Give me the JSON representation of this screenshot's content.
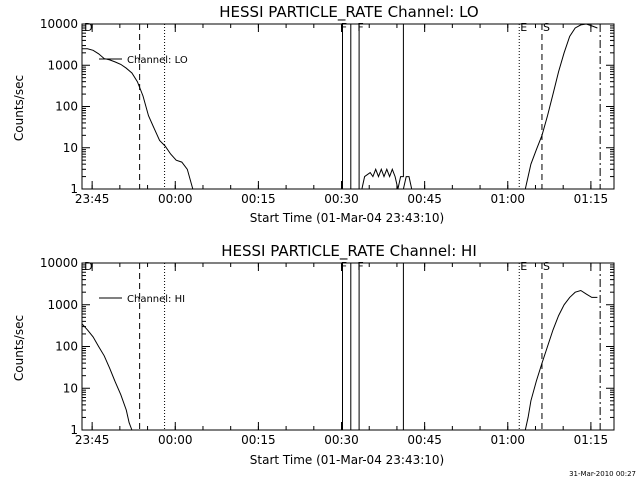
{
  "colors": {
    "foreground": "#000000",
    "background": "#ffffff"
  },
  "footer": {
    "timestamp": "31-Mar-2010 00:27"
  },
  "chart_data": [
    {
      "type": "line",
      "title": "HESSI PARTICLE_RATE Channel: LO",
      "xlabel": "Start Time (01-Mar-04 23:43:10)",
      "ylabel": "Counts/sec",
      "yscale": "log",
      "ylim": [
        1,
        10000
      ],
      "xlim_minutes": [
        0,
        96
      ],
      "x_ticks": [
        {
          "label": "23:45",
          "minutes": 1.83
        },
        {
          "label": "00:00",
          "minutes": 16.83
        },
        {
          "label": "00:15",
          "minutes": 31.83
        },
        {
          "label": "00:30",
          "minutes": 46.83
        },
        {
          "label": "00:45",
          "minutes": 61.83
        },
        {
          "label": "01:00",
          "minutes": 76.83
        },
        {
          "label": "01:15",
          "minutes": 91.83
        }
      ],
      "y_ticks": [
        {
          "label": "1",
          "value": 1
        },
        {
          "label": "10",
          "value": 10
        },
        {
          "label": "100",
          "value": 100
        },
        {
          "label": "1000",
          "value": 1000
        },
        {
          "label": "10000",
          "value": 10000
        }
      ],
      "legend": {
        "entry": "Channel: LO",
        "placement": "top-left"
      },
      "series": [
        {
          "name": "Channel: LO",
          "segments": [
            [
              [
                0,
                2500
              ],
              [
                1,
                2500
              ],
              [
                2,
                2300
              ],
              [
                3,
                1900
              ],
              [
                4,
                1450
              ],
              [
                5,
                1350
              ],
              [
                6,
                1200
              ],
              [
                7,
                1050
              ],
              [
                8,
                850
              ],
              [
                9,
                650
              ],
              [
                10,
                400
              ],
              [
                11,
                180
              ],
              [
                12,
                60
              ],
              [
                13,
                30
              ],
              [
                14,
                15
              ],
              [
                15,
                11
              ],
              [
                16,
                7
              ],
              [
                17,
                5
              ],
              [
                18,
                4.5
              ],
              [
                19,
                3
              ],
              [
                20,
                1
              ]
            ],
            [
              [
                46.5,
                1
              ],
              [
                47,
                1
              ],
              [
                47,
                10000
              ]
            ],
            [
              [
                48.5,
                1
              ],
              [
                48.5,
                10000
              ],
              [
                48.5,
                1
              ],
              [
                49,
                1
              ]
            ],
            [
              [
                49.5,
                1
              ],
              [
                50,
                1
              ],
              [
                50,
                10000
              ],
              [
                50,
                1
              ],
              [
                50.5,
                1
              ],
              [
                51,
                2
              ],
              [
                52,
                2.5
              ],
              [
                52.5,
                2
              ],
              [
                53,
                3
              ],
              [
                53.5,
                2
              ],
              [
                54,
                3
              ],
              [
                54.5,
                2
              ],
              [
                55,
                3
              ],
              [
                55.5,
                2
              ],
              [
                56,
                3
              ],
              [
                56.5,
                2
              ],
              [
                57,
                1
              ],
              [
                57.5,
                2
              ],
              [
                58,
                2
              ],
              [
                58,
                10000
              ]
            ],
            [
              [
                58,
                1
              ],
              [
                58.5,
                2
              ],
              [
                59,
                2
              ],
              [
                59.5,
                1
              ]
            ],
            [
              [
                80,
                1
              ],
              [
                80.5,
                2
              ],
              [
                81,
                4
              ],
              [
                82,
                9
              ],
              [
                83,
                20
              ],
              [
                84,
                60
              ],
              [
                85,
                200
              ],
              [
                86,
                700
              ],
              [
                87,
                2000
              ],
              [
                88,
                5000
              ],
              [
                89,
                8000
              ],
              [
                90,
                9500
              ],
              [
                91,
                10000
              ],
              [
                92,
                9000
              ],
              [
                93,
                8000
              ]
            ]
          ]
        }
      ],
      "markers": [
        {
          "label": "D",
          "minutes": 0.2,
          "style": "none"
        },
        {
          "label": "",
          "minutes": 10.4,
          "style": "dashed"
        },
        {
          "label": "",
          "minutes": 14.9,
          "style": "dotted"
        },
        {
          "label": "F",
          "minutes": 46.5,
          "style": "none"
        },
        {
          "label": "F",
          "minutes": 49.5,
          "style": "none"
        },
        {
          "label": "E",
          "minutes": 78.9,
          "style": "dotted"
        },
        {
          "label": "S",
          "minutes": 83.0,
          "style": "dashed"
        },
        {
          "label": "",
          "minutes": 93.5,
          "style": "dashdot"
        }
      ]
    },
    {
      "type": "line",
      "title": "HESSI PARTICLE_RATE Channel: HI",
      "xlabel": "Start Time (01-Mar-04 23:43:10)",
      "ylabel": "Counts/sec",
      "yscale": "log",
      "ylim": [
        1,
        10000
      ],
      "xlim_minutes": [
        0,
        96
      ],
      "x_ticks": [
        {
          "label": "23:45",
          "minutes": 1.83
        },
        {
          "label": "00:00",
          "minutes": 16.83
        },
        {
          "label": "00:15",
          "minutes": 31.83
        },
        {
          "label": "00:30",
          "minutes": 46.83
        },
        {
          "label": "00:45",
          "minutes": 61.83
        },
        {
          "label": "01:00",
          "minutes": 76.83
        },
        {
          "label": "01:15",
          "minutes": 91.83
        }
      ],
      "y_ticks": [
        {
          "label": "1",
          "value": 1
        },
        {
          "label": "10",
          "value": 10
        },
        {
          "label": "100",
          "value": 100
        },
        {
          "label": "1000",
          "value": 1000
        },
        {
          "label": "10000",
          "value": 10000
        }
      ],
      "legend": {
        "entry": "Channel: HI",
        "placement": "top-left"
      },
      "series": [
        {
          "name": "Channel: HI",
          "segments": [
            [
              [
                0,
                350
              ],
              [
                1,
                250
              ],
              [
                2,
                170
              ],
              [
                3,
                100
              ],
              [
                4,
                60
              ],
              [
                5,
                30
              ],
              [
                6,
                14
              ],
              [
                7,
                7
              ],
              [
                8,
                3
              ],
              [
                8.5,
                1.5
              ],
              [
                9,
                1
              ]
            ],
            [
              [
                46.5,
                1
              ],
              [
                47,
                1
              ],
              [
                47,
                10000
              ]
            ],
            [
              [
                48.5,
                1
              ],
              [
                48.5,
                10000
              ],
              [
                48.5,
                1
              ],
              [
                49,
                1
              ]
            ],
            [
              [
                49.5,
                1
              ],
              [
                50,
                1
              ],
              [
                50,
                10000
              ],
              [
                50,
                1
              ],
              [
                58,
                1
              ],
              [
                58,
                10000
              ]
            ],
            [
              [
                80,
                1
              ],
              [
                80.5,
                2
              ],
              [
                81,
                5
              ],
              [
                82,
                15
              ],
              [
                83,
                40
              ],
              [
                84,
                100
              ],
              [
                85,
                250
              ],
              [
                86,
                550
              ],
              [
                87,
                1000
              ],
              [
                88,
                1500
              ],
              [
                89,
                2000
              ],
              [
                90,
                2200
              ],
              [
                91,
                1800
              ],
              [
                92,
                1500
              ],
              [
                93,
                1500
              ]
            ]
          ]
        }
      ],
      "markers": [
        {
          "label": "D",
          "minutes": 0.2,
          "style": "none"
        },
        {
          "label": "",
          "minutes": 10.4,
          "style": "dashed"
        },
        {
          "label": "",
          "minutes": 14.9,
          "style": "dotted"
        },
        {
          "label": "F",
          "minutes": 46.5,
          "style": "none"
        },
        {
          "label": "F",
          "minutes": 49.5,
          "style": "none"
        },
        {
          "label": "E",
          "minutes": 78.9,
          "style": "dotted"
        },
        {
          "label": "S",
          "minutes": 83.0,
          "style": "dashed"
        },
        {
          "label": "",
          "minutes": 93.5,
          "style": "dashdot"
        }
      ]
    }
  ]
}
